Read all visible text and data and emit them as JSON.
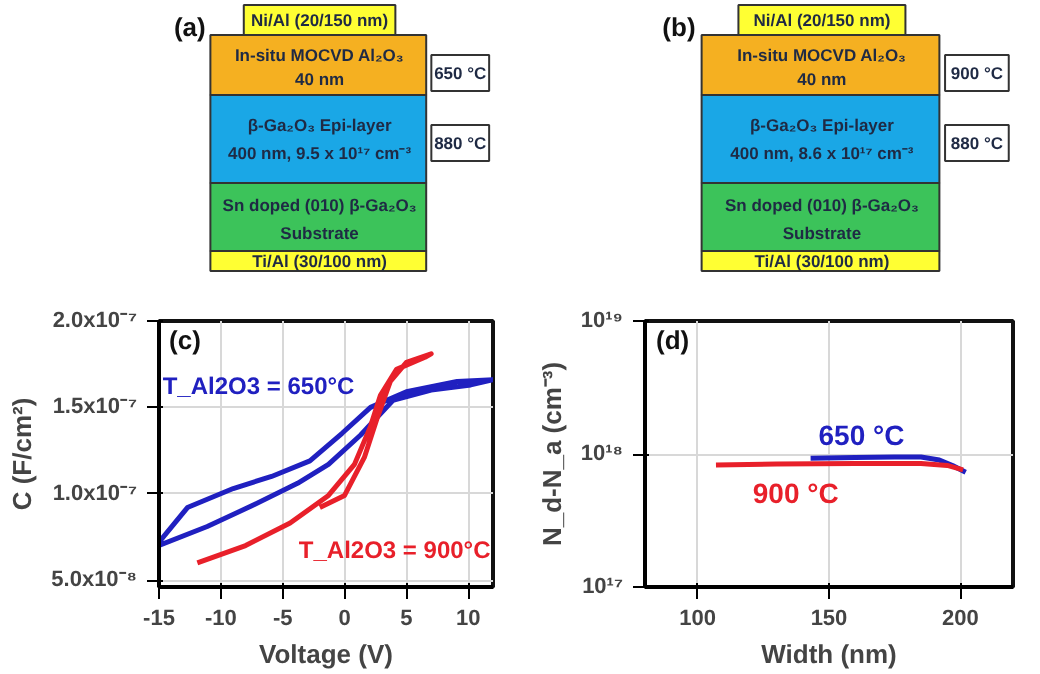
{
  "chart_data": [
    {
      "type": "other",
      "title": "(a)",
      "annotations": [
        "Ni/Al (20/150 nm)",
        "In-situ MOCVD Al₂O₃",
        "40 nm",
        "β-Ga₂O₃ Epi-layer",
        "400 nm, 9.5 x 10¹⁷ cm⁻³",
        "Sn doped (010) β-Ga₂O₃",
        "Substrate",
        "Ti/Al (30/100 nm)",
        "650 °C",
        "880 °C"
      ]
    },
    {
      "type": "other",
      "title": "(b)",
      "annotations": [
        "Ni/Al (20/150 nm)",
        "In-situ MOCVD Al₂O₃",
        "40 nm",
        "β-Ga₂O₃ Epi-layer",
        "400 nm, 8.6 x 10¹⁷ cm⁻³",
        "Sn doped (010) β-Ga₂O₃",
        "Substrate",
        "Ti/Al (30/100 nm)",
        "900 °C",
        "880 °C"
      ]
    },
    {
      "type": "line",
      "title": "(c)",
      "xlabel": "Voltage (V)",
      "ylabel": "C (F/cm²)",
      "xlim": [
        -15,
        12
      ],
      "xticks": [
        -15,
        -10,
        -5,
        0,
        5,
        10
      ],
      "ylim": [
        4.6e-08,
        2e-07
      ],
      "yticks": [
        {
          "value": 5e-08,
          "label": "5.0x10⁻⁸"
        },
        {
          "value": 1e-07,
          "label": "1.0x10⁻⁷"
        },
        {
          "value": 1.5e-07,
          "label": "1.5x10⁻⁷"
        },
        {
          "value": 2e-07,
          "label": "2.0x10⁻⁷"
        }
      ],
      "grid": true,
      "marker": "none",
      "line_style": "solid",
      "series": [
        {
          "name": "T_Al2O3 = 650°C",
          "color": "#2020c0",
          "x": [
            -15,
            -12.7,
            -9.0,
            -5.9,
            -2.8,
            -0.2,
            2.1,
            5.0,
            9.1,
            12,
            10.2,
            7.0,
            3.9,
            1.3,
            -1.3,
            -3.8,
            -7.5,
            -11.1,
            -15
          ],
          "values": [
            7.2e-08,
            9.2e-08,
            1.03e-07,
            1.1e-07,
            1.19e-07,
            1.35e-07,
            1.5e-07,
            1.59e-07,
            1.65e-07,
            1.66e-07,
            1.63e-07,
            1.6e-07,
            1.54e-07,
            1.34e-07,
            1.17e-07,
            1.06e-07,
            9.3e-08,
            8.1e-08,
            7e-08
          ]
        },
        {
          "name": "T_Al2O3 = 900°C",
          "color": "#e8202a",
          "x": [
            -11.9,
            -8.0,
            -4.4,
            -1.3,
            0.8,
            2.1,
            2.9,
            4.2,
            6.5,
            7.0,
            5.0,
            3.7,
            2.6,
            1.6,
            0.0,
            -2.0
          ],
          "values": [
            6e-08,
            7e-08,
            8.3e-08,
            9.9e-08,
            1.17e-07,
            1.39e-07,
            1.57e-07,
            1.72e-07,
            1.79e-07,
            1.81e-07,
            1.76e-07,
            1.65e-07,
            1.43e-07,
            1.21e-07,
            9.9e-08,
            9.2e-08
          ]
        }
      ]
    },
    {
      "type": "line",
      "title": "(d)",
      "xlabel": "Width (nm)",
      "ylabel": "N_d-N_a (cm⁻³)",
      "xlim": [
        80,
        220
      ],
      "xticks": [
        100,
        150,
        200
      ],
      "log": "y",
      "ylim": [
        1e+17,
        1e+19
      ],
      "yticks": [
        {
          "value": 1e+17,
          "label": "10¹⁷"
        },
        {
          "value": 1e+18,
          "label": "10¹⁸"
        },
        {
          "value": 1e+19,
          "label": "10¹⁹"
        }
      ],
      "grid": true,
      "marker": "none",
      "line_style": "solid",
      "series": [
        {
          "name": "650 °C",
          "color": "#2020c0",
          "x": [
            143,
            160,
            175,
            185,
            192,
            197,
            202
          ],
          "values": [
            9.3e+17,
            9.4e+17,
            9.5e+17,
            9.5e+17,
            9e+17,
            8.2e+17,
            7.3e+17
          ]
        },
        {
          "name": "900 °C",
          "color": "#e8202a",
          "x": [
            107,
            130,
            160,
            185,
            195,
            201
          ],
          "values": [
            8.25e+17,
            8.4e+17,
            8.5e+17,
            8.5e+17,
            8.2e+17,
            7.6e+17
          ]
        }
      ]
    }
  ]
}
